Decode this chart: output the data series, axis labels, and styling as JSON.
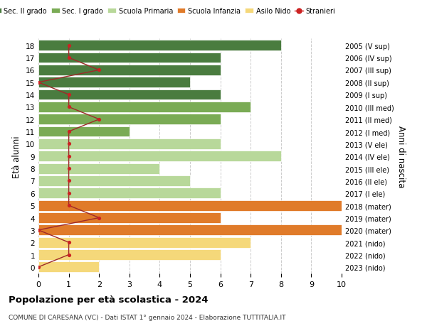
{
  "ages": [
    18,
    17,
    16,
    15,
    14,
    13,
    12,
    11,
    10,
    9,
    8,
    7,
    6,
    5,
    4,
    3,
    2,
    1,
    0
  ],
  "right_labels_by_age": {
    "18": "2005 (V sup)",
    "17": "2006 (IV sup)",
    "16": "2007 (III sup)",
    "15": "2008 (II sup)",
    "14": "2009 (I sup)",
    "13": "2010 (III med)",
    "12": "2011 (II med)",
    "11": "2012 (I med)",
    "10": "2013 (V ele)",
    "9": "2014 (IV ele)",
    "8": "2015 (III ele)",
    "7": "2016 (II ele)",
    "6": "2017 (I ele)",
    "5": "2018 (mater)",
    "4": "2019 (mater)",
    "3": "2020 (mater)",
    "2": "2021 (nido)",
    "1": "2022 (nido)",
    "0": "2023 (nido)"
  },
  "bar_values": [
    8,
    6,
    6,
    5,
    6,
    7,
    6,
    3,
    6,
    8,
    4,
    5,
    6,
    10,
    6,
    10,
    7,
    6,
    2
  ],
  "bar_colors": [
    "#4a7c3f",
    "#4a7c3f",
    "#4a7c3f",
    "#4a7c3f",
    "#4a7c3f",
    "#7aab55",
    "#7aab55",
    "#7aab55",
    "#b8d89a",
    "#b8d89a",
    "#b8d89a",
    "#b8d89a",
    "#b8d89a",
    "#e07b2a",
    "#e07b2a",
    "#e07b2a",
    "#f5d87a",
    "#f5d87a",
    "#f5d87a"
  ],
  "stranieri_x": [
    1,
    1,
    2,
    0,
    1,
    1,
    2,
    1,
    1,
    1,
    1,
    1,
    1,
    1,
    2,
    0,
    1,
    1,
    0
  ],
  "legend_labels": [
    "Sec. II grado",
    "Sec. I grado",
    "Scuola Primaria",
    "Scuola Infanzia",
    "Asilo Nido",
    "Stranieri"
  ],
  "legend_colors": [
    "#4a7c3f",
    "#7aab55",
    "#b8d89a",
    "#e07b2a",
    "#f5d87a",
    "#cc2222"
  ],
  "title": "Popolazione per età scolastica - 2024",
  "subtitle": "COMUNE DI CARESANA (VC) - Dati ISTAT 1° gennaio 2024 - Elaborazione TUTTITALIA.IT",
  "ylabel": "Età alunni",
  "right_ylabel": "Anni di nascita",
  "xlim": [
    0,
    10
  ],
  "ylim": [
    -0.55,
    18.55
  ],
  "background_color": "#ffffff",
  "grid_color": "#cccccc"
}
